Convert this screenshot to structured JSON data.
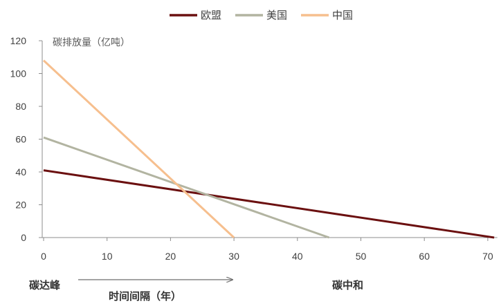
{
  "chart_data": {
    "type": "line",
    "ylabel": "碳排放量（亿吨）",
    "xlabel": "时间间隔（年）",
    "xlim": [
      0,
      71.5
    ],
    "ylim": [
      0,
      120
    ],
    "xticks": [
      0,
      10,
      20,
      30,
      40,
      50,
      60,
      70
    ],
    "yticks": [
      0,
      20,
      40,
      60,
      80,
      100,
      120
    ],
    "grid": false,
    "legend_position": "top",
    "series": [
      {
        "name": "欧盟",
        "color": "#6B1010",
        "x": [
          0,
          71
        ],
        "y": [
          41,
          0
        ]
      },
      {
        "name": "美国",
        "color": "#B2B4A1",
        "x": [
          0,
          45
        ],
        "y": [
          61,
          0
        ]
      },
      {
        "name": "中国",
        "color": "#F6BF8E",
        "x": [
          0,
          30
        ],
        "y": [
          108,
          0
        ]
      }
    ],
    "annotations": {
      "start_label": "碳达峰",
      "end_label": "碳中和"
    }
  }
}
